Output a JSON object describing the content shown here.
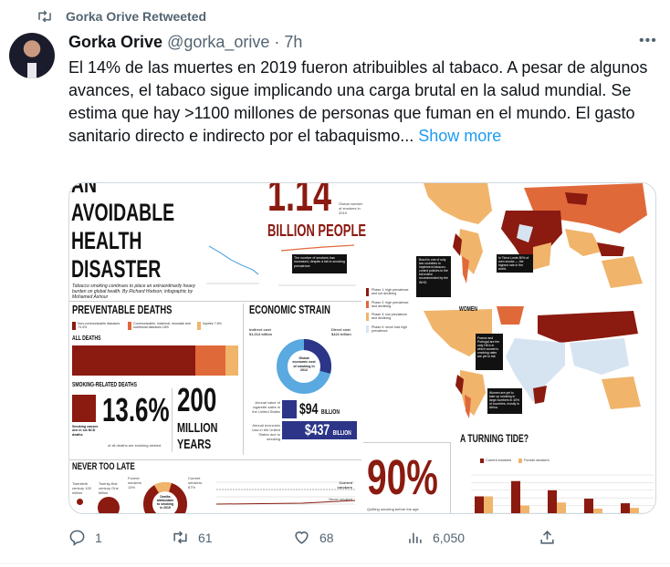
{
  "retweet_banner": {
    "text": "Gorka Orive Retweeted",
    "icon": "retweet-icon"
  },
  "tweet": {
    "author_name": "Gorka Orive",
    "handle": "@gorka_orive",
    "separator": "·",
    "time": "7h",
    "more_icon": "more-dots-icon",
    "text": "El 14% de las muertes en 2019 fueron atribuibles al tabaco. A pesar de algunos avances, el tabaco sigue implicando una carga brutal en la salud mundial. Se estima que hay >1100 millones de personas que fuman en el mundo. El gasto sanitario directo e indirecto por el tabaquismo...",
    "show_more": "Show more"
  },
  "infographic": {
    "title_lines": [
      "AN",
      "AVOIDABLE",
      "HEALTH",
      "DISASTER"
    ],
    "subtitle": "Tobacco smoking continues to place an extraordinarily heavy burden on global health. By Richard Hodson; infographic by Mohamed Ashour",
    "big_number": "1.14",
    "big_number_unit": "BILLION PEOPLE",
    "big_number_caption": "Global number of smokers in 2019",
    "callout_smokers": "The number of smokers has increased, despite a fall in smoking prevalence",
    "preventable_title": "PREVENTABLE DEATHS",
    "legend_ncd": "Non-communicable diseases 74.4%",
    "legend_comm": "Communicable, maternal, neonatal and nutritional diseases 18%",
    "legend_inj": "Injuries 7.6%",
    "all_deaths": "ALL DEATHS",
    "death_shares": [
      74.4,
      18,
      7.6
    ],
    "smoking_deaths_title": "SMOKING-RELATED DEATHS",
    "smoking_pct": "13.6%",
    "smoking_pct_caption": "of all deaths are smoking-related.",
    "smoking_ncd": "Smoking causes one in six NCD deaths",
    "years_number": "200",
    "years_unit_1": "MILLION",
    "years_unit_2": "YEARS",
    "economic_title": "ECONOMIC STRAIN",
    "indirect_cost": "Indirect cost $1,014 billion",
    "direct_cost": "Direct cost $422 billion",
    "donut_center": "Global economic cost of smoking in 2012",
    "cig_sales_label": "Annual value of cigarette sales in the United States",
    "cig_sales": "$94",
    "econ_loss_label": "Annual economic loss in the United States due to smoking",
    "econ_loss": "$437",
    "billion": "BILLION",
    "never_title": "NEVER TOO LATE",
    "c20": "Twentieth century 100 million",
    "c21": "Twenty-first century One billion",
    "former_pct": "Former smokers 13%",
    "current_pct": "Current smokers 87%",
    "attrib": "Deaths attributable to smoking in 2019",
    "current_smokers": "Current smokers",
    "never_smoked": "Never smoked",
    "legend_phase1": "Phase 1: high prevalence and not declining",
    "legend_phase2": "Phase 2: high prevalence and declining",
    "legend_phase3": "Phase 3: low prevalence and declining",
    "legend_phase0": "Phase 0: never had high prevalence",
    "women": "WOMEN",
    "brazil_note": "Brazil is one of only two countries to implement tobacco-control policies to the full extent recommended by the WHO.",
    "timor_note": "In Timor-Leste 80% of men smoke — the highest rate in the world.",
    "france_note": "France and Portugal are the only HICs in which women's smoking rates are yet to fall.",
    "africa_note": "Women are yet to take up smoking in large numbers in 40% of countries, mostly in Africa.",
    "ninety": "90%",
    "ninety_caption": "Quitting smoking before the age",
    "tide_title": "A TURNING TIDE?",
    "tide_legend_current": "Current smokers",
    "tide_legend_former": "Former smokers",
    "tide_current": [
      11,
      21,
      15,
      9.5,
      6.5
    ],
    "tide_former": [
      11,
      5,
      7,
      3,
      3.5
    ],
    "colors": {
      "dark_red": "#8b1a10",
      "orange": "#e0693a",
      "light_orange": "#f0b46b",
      "pale_blue": "#d6e4f2",
      "navy": "#2c3587",
      "sky": "#5aa9e0"
    }
  },
  "actions": {
    "reply": {
      "icon": "reply-icon",
      "count": "1"
    },
    "retweet": {
      "icon": "retweet-icon",
      "count": "61"
    },
    "like": {
      "icon": "heart-icon",
      "count": "68"
    },
    "views": {
      "icon": "views-icon",
      "count": "6,050"
    },
    "share": {
      "icon": "share-icon"
    }
  }
}
